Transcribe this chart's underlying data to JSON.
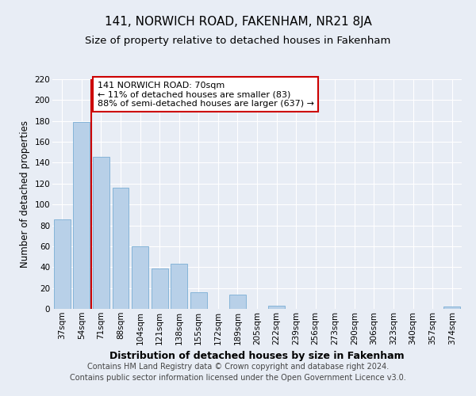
{
  "title": "141, NORWICH ROAD, FAKENHAM, NR21 8JA",
  "subtitle": "Size of property relative to detached houses in Fakenham",
  "xlabel": "Distribution of detached houses by size in Fakenham",
  "ylabel": "Number of detached properties",
  "categories": [
    "37sqm",
    "54sqm",
    "71sqm",
    "88sqm",
    "104sqm",
    "121sqm",
    "138sqm",
    "155sqm",
    "172sqm",
    "189sqm",
    "205sqm",
    "222sqm",
    "239sqm",
    "256sqm",
    "273sqm",
    "290sqm",
    "306sqm",
    "323sqm",
    "340sqm",
    "357sqm",
    "374sqm"
  ],
  "values": [
    86,
    179,
    146,
    116,
    60,
    39,
    43,
    16,
    0,
    14,
    0,
    3,
    0,
    0,
    0,
    0,
    0,
    0,
    0,
    0,
    2
  ],
  "bar_color": "#b8d0e8",
  "bar_edge_color": "#7aaed4",
  "highlight_color": "#cc0000",
  "annotation_text": "141 NORWICH ROAD: 70sqm\n← 11% of detached houses are smaller (83)\n88% of semi-detached houses are larger (637) →",
  "annotation_box_color": "#ffffff",
  "annotation_box_edge": "#cc0000",
  "ylim": [
    0,
    220
  ],
  "yticks": [
    0,
    20,
    40,
    60,
    80,
    100,
    120,
    140,
    160,
    180,
    200,
    220
  ],
  "background_color": "#e8edf5",
  "plot_bg_color": "#e8edf5",
  "footer": "Contains HM Land Registry data © Crown copyright and database right 2024.\nContains public sector information licensed under the Open Government Licence v3.0.",
  "title_fontsize": 11,
  "subtitle_fontsize": 9.5,
  "xlabel_fontsize": 9,
  "ylabel_fontsize": 8.5,
  "tick_fontsize": 7.5,
  "footer_fontsize": 7,
  "annot_fontsize": 8
}
